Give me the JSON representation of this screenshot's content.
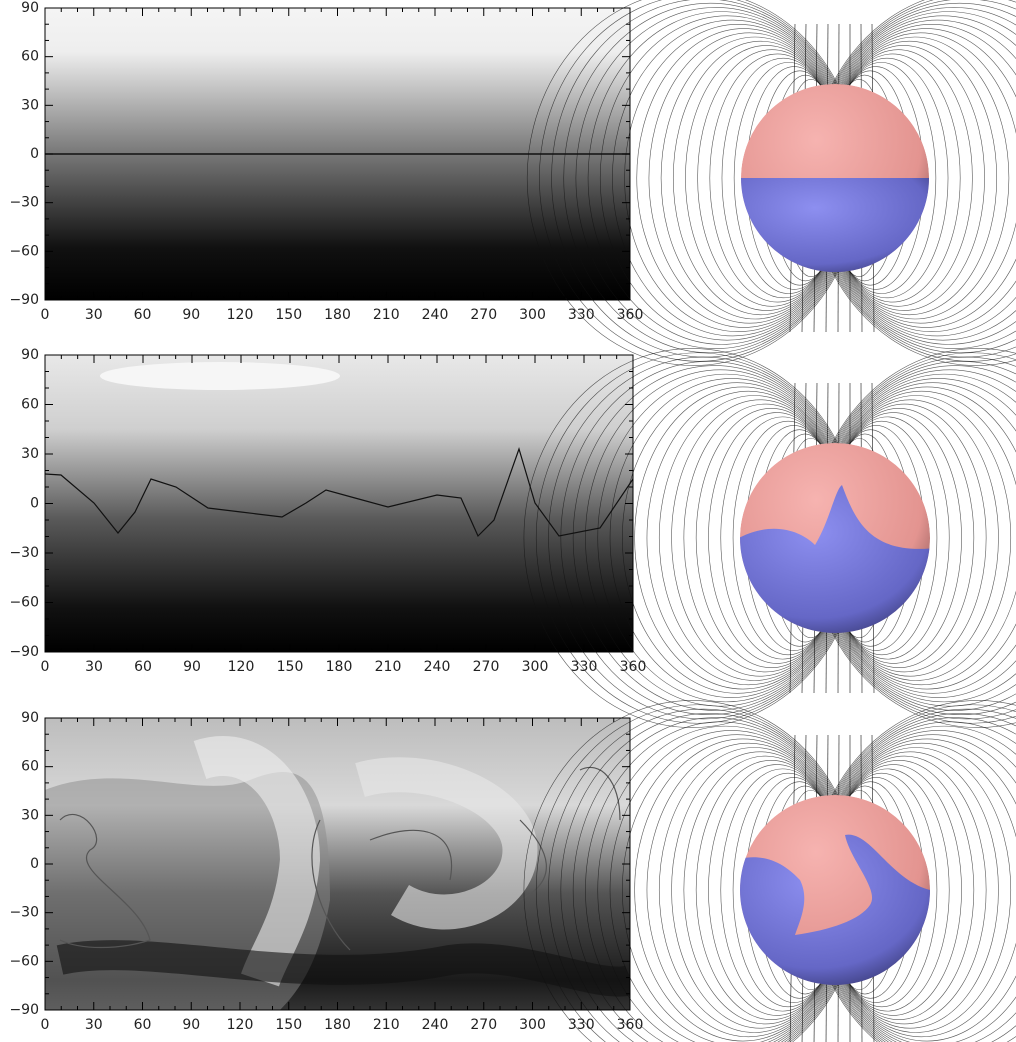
{
  "chart_data": [
    {
      "type": "contour",
      "xlim": [
        0,
        360
      ],
      "ylim": [
        -90,
        90
      ],
      "xticks": [
        0,
        30,
        60,
        90,
        120,
        150,
        180,
        210,
        240,
        270,
        300,
        330,
        360
      ],
      "yticks": [
        {
          "value": -90,
          "label": "−90"
        },
        {
          "value": -60,
          "label": "−60"
        },
        {
          "value": -30,
          "label": "−30"
        },
        0,
        30,
        60,
        90
      ]
    },
    {
      "type": "contour",
      "xlim": [
        0,
        360
      ],
      "ylim": [
        -90,
        90
      ],
      "xticks": [
        0,
        30,
        60,
        90,
        120,
        150,
        180,
        210,
        240,
        270,
        300,
        330,
        360
      ],
      "yticks": [
        {
          "value": -90,
          "label": "−90"
        },
        {
          "value": -60,
          "label": "−60"
        },
        {
          "value": -30,
          "label": "−30"
        },
        0,
        30,
        60,
        90
      ]
    },
    {
      "type": "contour",
      "xlim": [
        0,
        360
      ],
      "ylim": [
        -90,
        90
      ],
      "xticks": [
        0,
        30,
        60,
        90,
        120,
        150,
        180,
        210,
        240,
        270,
        300,
        330,
        360
      ],
      "yticks": [
        {
          "value": -90,
          "label": "−90"
        },
        {
          "value": -60,
          "label": "−60"
        },
        {
          "value": -30,
          "label": "−30"
        },
        0,
        30,
        60,
        90
      ]
    }
  ]
}
